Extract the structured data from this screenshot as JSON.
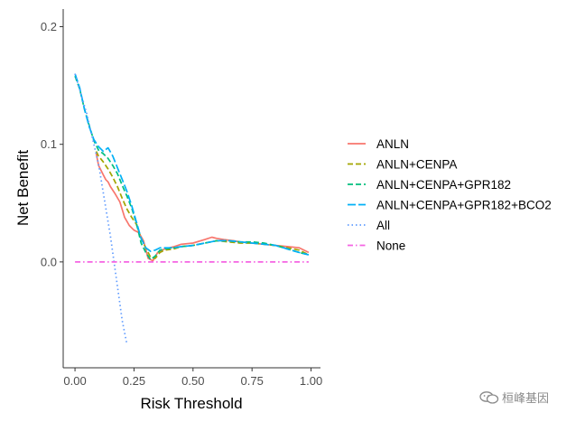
{
  "chart_data": {
    "type": "line",
    "title": "",
    "xlabel": "Risk Threshold",
    "ylabel": "Net Benefit",
    "xlim": [
      -0.05,
      1.04
    ],
    "ylim": [
      -0.09,
      0.215
    ],
    "x_ticks": [
      0.0,
      0.25,
      0.5,
      0.75,
      1.0
    ],
    "x_tick_labels": [
      "0.00",
      "0.25",
      "0.50",
      "0.75",
      "1.00"
    ],
    "y_ticks": [
      0.0,
      0.1,
      0.2
    ],
    "y_tick_labels": [
      "0.0",
      "0.1",
      "0.2"
    ],
    "grid": false,
    "legend_position": "right",
    "series": [
      {
        "name": "ANLN",
        "color": "#F8766D",
        "dash": "solid",
        "x": [
          0.09,
          0.1,
          0.12,
          0.13,
          0.14,
          0.15,
          0.17,
          0.19,
          0.21,
          0.23,
          0.25,
          0.27,
          0.29,
          0.31,
          0.33,
          0.35,
          0.38,
          0.42,
          0.45,
          0.5,
          0.55,
          0.58,
          0.6,
          0.63,
          0.67,
          0.7,
          0.75,
          0.8,
          0.85,
          0.9,
          0.95,
          0.99
        ],
        "y": [
          0.092,
          0.082,
          0.074,
          0.07,
          0.068,
          0.064,
          0.058,
          0.051,
          0.038,
          0.031,
          0.027,
          0.025,
          0.018,
          0.003,
          0.001,
          0.008,
          0.011,
          0.013,
          0.015,
          0.016,
          0.019,
          0.021,
          0.02,
          0.019,
          0.018,
          0.017,
          0.016,
          0.015,
          0.014,
          0.013,
          0.012,
          0.008
        ]
      },
      {
        "name": "ANLN+CENPA",
        "color": "#A3A500",
        "dash": "dashed",
        "x": [
          0.09,
          0.1,
          0.12,
          0.14,
          0.16,
          0.18,
          0.2,
          0.22,
          0.24,
          0.26,
          0.28,
          0.3,
          0.32,
          0.34,
          0.36,
          0.38,
          0.42,
          0.45,
          0.5,
          0.55,
          0.6,
          0.65,
          0.7,
          0.75,
          0.8,
          0.85,
          0.9,
          0.95,
          0.99
        ],
        "y": [
          0.094,
          0.09,
          0.085,
          0.079,
          0.072,
          0.064,
          0.054,
          0.045,
          0.038,
          0.032,
          0.02,
          0.012,
          0.004,
          0.003,
          0.008,
          0.01,
          0.011,
          0.013,
          0.014,
          0.016,
          0.018,
          0.017,
          0.016,
          0.016,
          0.015,
          0.014,
          0.012,
          0.01,
          0.006
        ]
      },
      {
        "name": "ANLN+CENPA+GPR182",
        "color": "#00BF7D",
        "dash": "dashed",
        "x": [
          0.0,
          0.02,
          0.04,
          0.06,
          0.08,
          0.1,
          0.12,
          0.14,
          0.16,
          0.18,
          0.2,
          0.22,
          0.24,
          0.26,
          0.28,
          0.3,
          0.32,
          0.34,
          0.36,
          0.38,
          0.42,
          0.45,
          0.5,
          0.55,
          0.6,
          0.65,
          0.7,
          0.75,
          0.8,
          0.85,
          0.9,
          0.95,
          0.99
        ],
        "y": [
          0.158,
          0.147,
          0.13,
          0.116,
          0.103,
          0.095,
          0.092,
          0.088,
          0.082,
          0.075,
          0.065,
          0.056,
          0.046,
          0.033,
          0.016,
          0.008,
          0.002,
          0.005,
          0.01,
          0.011,
          0.012,
          0.013,
          0.014,
          0.016,
          0.018,
          0.018,
          0.017,
          0.017,
          0.016,
          0.014,
          0.011,
          0.008,
          0.006
        ]
      },
      {
        "name": "ANLN+CENPA+GPR182+BCO2",
        "color": "#00B0F6",
        "dash": "longdash",
        "x": [
          0.0,
          0.02,
          0.04,
          0.06,
          0.08,
          0.1,
          0.12,
          0.14,
          0.16,
          0.18,
          0.2,
          0.22,
          0.24,
          0.26,
          0.28,
          0.3,
          0.32,
          0.34,
          0.36,
          0.38,
          0.42,
          0.45,
          0.5,
          0.55,
          0.6,
          0.65,
          0.7,
          0.75,
          0.8,
          0.85,
          0.9,
          0.95,
          0.99
        ],
        "y": [
          0.16,
          0.148,
          0.13,
          0.115,
          0.104,
          0.098,
          0.094,
          0.097,
          0.09,
          0.08,
          0.07,
          0.06,
          0.048,
          0.034,
          0.02,
          0.012,
          0.009,
          0.01,
          0.012,
          0.012,
          0.012,
          0.013,
          0.014,
          0.016,
          0.018,
          0.018,
          0.017,
          0.016,
          0.015,
          0.014,
          0.011,
          0.008,
          0.006
        ]
      },
      {
        "name": "All",
        "color": "#619CFF",
        "dash": "dotted",
        "x": [
          0.0,
          0.05,
          0.1,
          0.15,
          0.2,
          0.22
        ],
        "y": [
          0.16,
          0.126,
          0.083,
          0.022,
          -0.05,
          -0.07
        ]
      },
      {
        "name": "None",
        "color": "#F564E3",
        "dash": "dotdash",
        "x": [
          0.0,
          0.99
        ],
        "y": [
          0.0,
          0.0
        ]
      }
    ]
  },
  "watermark": {
    "text": "桓峰基因",
    "icon": "wechat-icon"
  }
}
